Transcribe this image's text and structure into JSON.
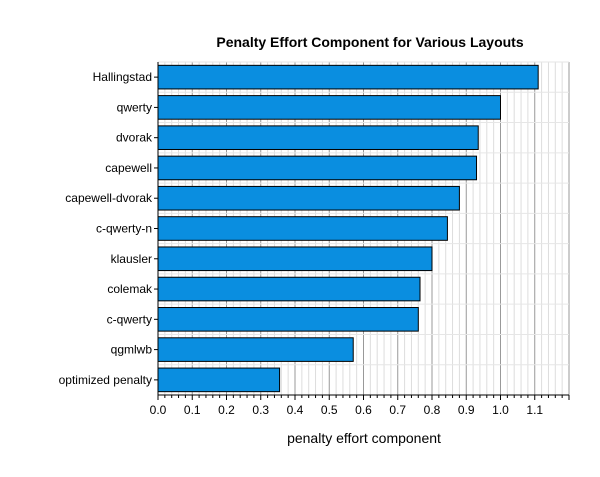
{
  "chart_data": {
    "type": "bar",
    "orientation": "horizontal",
    "title": "Penalty Effort Component for Various Layouts",
    "xlabel": "penalty effort component",
    "ylabel": "",
    "categories": [
      "Hallingstad",
      "qwerty",
      "dvorak",
      "capewell",
      "capewell-dvorak",
      "c-qwerty-n",
      "klausler",
      "colemak",
      "c-qwerty",
      "qgmlwb",
      "optimized penalty"
    ],
    "values": [
      1.11,
      1.0,
      0.935,
      0.93,
      0.88,
      0.845,
      0.8,
      0.765,
      0.76,
      0.57,
      0.355
    ],
    "xlim": [
      0,
      1.2
    ],
    "xticks": [
      "0.0",
      "0.1",
      "0.2",
      "0.3",
      "0.4",
      "0.5",
      "0.6",
      "0.7",
      "0.8",
      "0.9",
      "1.0",
      "1.1"
    ],
    "grid": true,
    "bar_color": "#0a8ee0",
    "highlight_category": "optimized penalty",
    "highlight_label_color": "#e8202a"
  }
}
